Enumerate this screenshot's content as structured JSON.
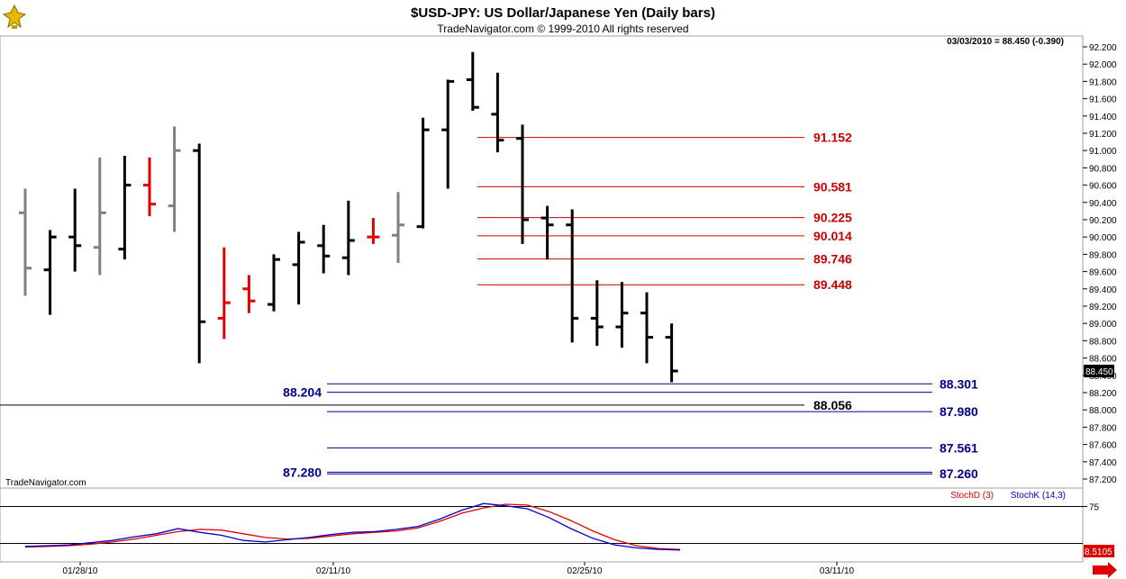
{
  "header": {
    "title": "$USD-JPY:  US Dollar/Japanese Yen  (Daily bars)",
    "copyright": "TradeNavigator.com © 1999-2010 All rights reserved",
    "last_value_label": "03/03/2010 = 88.450 (-0.390)",
    "watermark": "TradeNavigator.com"
  },
  "colors": {
    "up_bar": "#000000",
    "down_bar": "#000000",
    "gray_bar": "#808080",
    "red_bar": "#e00000",
    "red_level": "#cc0000",
    "blue_level": "#00008b",
    "stoch_d": "#e00000",
    "stoch_k": "#0000cc"
  },
  "chart_data": [
    {
      "type": "ohlc",
      "title": "$USD-JPY:  US Dollar/Japanese Yen  (Daily bars)",
      "x_ticks": [
        "01/28/10",
        "02/11/10",
        "02/25/10",
        "03/11/10"
      ],
      "y_ticks": [
        "92.200",
        "92.000",
        "91.800",
        "91.600",
        "91.400",
        "91.200",
        "91.000",
        "90.800",
        "90.600",
        "90.400",
        "90.200",
        "90.000",
        "89.800",
        "89.600",
        "89.400",
        "89.200",
        "89.000",
        "88.800",
        "88.600",
        "88.400",
        "88.200",
        "88.000",
        "87.800",
        "87.600",
        "87.400",
        "87.200"
      ],
      "ylim": [
        87.16,
        92.32
      ],
      "current_price_label": "88.450",
      "bars": [
        {
          "o": 90.28,
          "h": 90.56,
          "l": 89.32,
          "c": 89.64,
          "color": "gray"
        },
        {
          "o": 89.62,
          "h": 90.08,
          "l": 89.1,
          "c": 90.0,
          "color": "black"
        },
        {
          "o": 90.0,
          "h": 90.56,
          "l": 89.6,
          "c": 89.9,
          "color": "black"
        },
        {
          "o": 89.88,
          "h": 90.92,
          "l": 89.56,
          "c": 90.28,
          "color": "gray"
        },
        {
          "o": 89.86,
          "h": 90.94,
          "l": 89.74,
          "c": 90.6,
          "color": "black"
        },
        {
          "o": 90.6,
          "h": 90.92,
          "l": 90.24,
          "c": 90.38,
          "color": "red"
        },
        {
          "o": 90.36,
          "h": 91.28,
          "l": 90.06,
          "c": 91.0,
          "color": "gray"
        },
        {
          "o": 91.0,
          "h": 91.08,
          "l": 88.54,
          "c": 89.02,
          "color": "black"
        },
        {
          "o": 89.06,
          "h": 89.88,
          "l": 88.82,
          "c": 89.24,
          "color": "red"
        },
        {
          "o": 89.4,
          "h": 89.56,
          "l": 89.12,
          "c": 89.26,
          "color": "red"
        },
        {
          "o": 89.22,
          "h": 89.8,
          "l": 89.14,
          "c": 89.74,
          "color": "black"
        },
        {
          "o": 89.68,
          "h": 90.06,
          "l": 89.22,
          "c": 89.94,
          "color": "black"
        },
        {
          "o": 89.9,
          "h": 90.14,
          "l": 89.58,
          "c": 89.78,
          "color": "black"
        },
        {
          "o": 89.76,
          "h": 90.42,
          "l": 89.56,
          "c": 89.96,
          "color": "black"
        },
        {
          "o": 90.0,
          "h": 90.22,
          "l": 89.92,
          "c": 90.0,
          "color": "red"
        },
        {
          "o": 90.02,
          "h": 90.52,
          "l": 89.7,
          "c": 90.14,
          "color": "gray"
        },
        {
          "o": 90.12,
          "h": 91.38,
          "l": 90.1,
          "c": 91.24,
          "color": "black"
        },
        {
          "o": 91.24,
          "h": 91.82,
          "l": 90.56,
          "c": 91.8,
          "color": "black"
        },
        {
          "o": 91.82,
          "h": 92.14,
          "l": 91.46,
          "c": 91.5,
          "color": "black"
        },
        {
          "o": 91.42,
          "h": 91.9,
          "l": 90.98,
          "c": 91.12,
          "color": "black"
        },
        {
          "o": 91.14,
          "h": 91.3,
          "l": 89.92,
          "c": 90.2,
          "color": "black"
        },
        {
          "o": 90.22,
          "h": 90.36,
          "l": 89.74,
          "c": 90.14,
          "color": "black"
        },
        {
          "o": 90.14,
          "h": 90.32,
          "l": 88.78,
          "c": 89.06,
          "color": "black"
        },
        {
          "o": 89.06,
          "h": 89.5,
          "l": 88.74,
          "c": 88.96,
          "color": "black"
        },
        {
          "o": 88.96,
          "h": 89.48,
          "l": 88.72,
          "c": 89.12,
          "color": "black"
        },
        {
          "o": 89.12,
          "h": 89.36,
          "l": 88.54,
          "c": 88.84,
          "color": "black"
        },
        {
          "o": 88.84,
          "h": 89.0,
          "l": 88.32,
          "c": 88.45,
          "color": "black"
        }
      ],
      "levels": [
        {
          "value": 91.152,
          "label": "91.152",
          "color": "red",
          "label_side": "right-mid",
          "span": "mid"
        },
        {
          "value": 90.581,
          "label": "90.581",
          "color": "red",
          "label_side": "right-mid",
          "span": "mid"
        },
        {
          "value": 90.225,
          "label": "90.225",
          "color": "red",
          "label_side": "right-mid",
          "span": "mid"
        },
        {
          "value": 90.014,
          "label": "90.014",
          "color": "red",
          "label_side": "right-mid",
          "span": "mid"
        },
        {
          "value": 89.746,
          "label": "89.746",
          "color": "red",
          "label_side": "right-mid",
          "span": "mid"
        },
        {
          "value": 89.448,
          "label": "89.448",
          "color": "red",
          "label_side": "right-mid",
          "span": "mid"
        },
        {
          "value": 88.301,
          "label": "88.301",
          "color": "blue",
          "label_side": "right",
          "span": "right"
        },
        {
          "value": 88.204,
          "label": "88.204",
          "color": "blue",
          "label_side": "left",
          "span": "right"
        },
        {
          "value": 88.056,
          "label": "88.056",
          "color": "black",
          "label_side": "right-mid",
          "span": "full"
        },
        {
          "value": 87.98,
          "label": "87.980",
          "color": "blue",
          "label_side": "right",
          "span": "right"
        },
        {
          "value": 87.561,
          "label": "87.561",
          "color": "blue",
          "label_side": "right",
          "span": "right"
        },
        {
          "value": 87.28,
          "label": "87.280",
          "color": "blue",
          "label_side": "left",
          "span": "right"
        },
        {
          "value": 87.26,
          "label": "87.260",
          "color": "blue",
          "label_side": "right",
          "span": "right"
        }
      ]
    },
    {
      "type": "line",
      "legend": [
        "StochD (3)",
        "StochK (14,3)"
      ],
      "y_ticks": [
        "75"
      ],
      "current_value_label": "8.5105",
      "series": [
        {
          "name": "StochD (3)",
          "color": "red",
          "values": [
            20,
            21,
            22,
            24,
            27,
            31,
            36,
            41,
            44,
            43,
            38,
            33,
            31,
            32,
            35,
            38,
            40,
            42,
            46,
            55,
            66,
            73,
            78,
            77,
            68,
            56,
            42,
            30,
            22,
            18,
            17
          ]
        },
        {
          "name": "StochK (14,3)",
          "color": "blue",
          "values": [
            21,
            22,
            23,
            26,
            29,
            34,
            38,
            45,
            40,
            36,
            29,
            27,
            30,
            33,
            37,
            40,
            41,
            44,
            48,
            58,
            70,
            79,
            76,
            72,
            60,
            45,
            32,
            23,
            19,
            17,
            16
          ]
        }
      ]
    }
  ]
}
